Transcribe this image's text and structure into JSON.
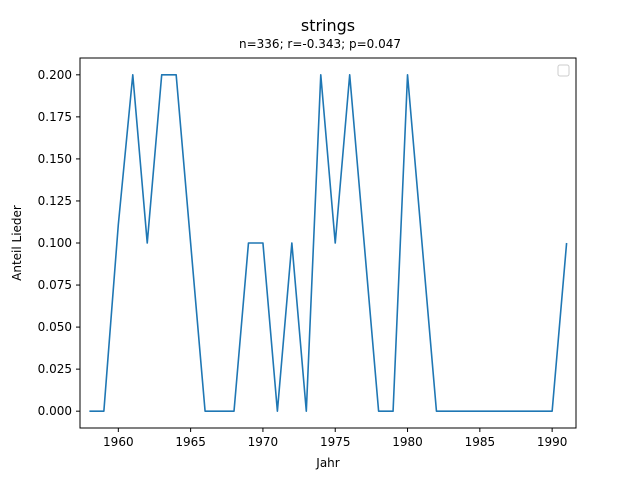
{
  "chart_data": {
    "type": "line",
    "title": "strings",
    "subtitle": "n=336; r=-0.343; p=0.047",
    "xlabel": "Jahr",
    "ylabel": "Anteil Lieder",
    "xlim": [
      1957.35,
      1991.65
    ],
    "ylim": [
      -0.01,
      0.21
    ],
    "xticks": [
      1960,
      1965,
      1970,
      1975,
      1980,
      1985,
      1990
    ],
    "yticks": [
      0.0,
      0.025,
      0.05,
      0.075,
      0.1,
      0.125,
      0.15,
      0.175,
      0.2
    ],
    "xtick_labels": [
      "1960",
      "1965",
      "1970",
      "1975",
      "1980",
      "1985",
      "1990"
    ],
    "ytick_labels": [
      "0.000",
      "0.025",
      "0.050",
      "0.075",
      "0.100",
      "0.125",
      "0.150",
      "0.175",
      "0.200"
    ],
    "legend": {
      "placement": "top-right",
      "entries": []
    },
    "grid": false,
    "series": [
      {
        "color": "#1f77b4",
        "x": [
          1958,
          1959,
          1960,
          1961,
          1962,
          1963,
          1964,
          1965,
          1966,
          1967,
          1968,
          1969,
          1970,
          1971,
          1972,
          1973,
          1974,
          1975,
          1976,
          1977,
          1978,
          1979,
          1980,
          1981,
          1982,
          1983,
          1984,
          1985,
          1986,
          1987,
          1988,
          1989,
          1990,
          1991
        ],
        "values": [
          0.0,
          0.0,
          0.111,
          0.2,
          0.1,
          0.2,
          0.2,
          0.1,
          0.0,
          0.0,
          0.0,
          0.1,
          0.1,
          0.0,
          0.1,
          0.0,
          0.2,
          0.1,
          0.2,
          0.1,
          0.0,
          0.0,
          0.2,
          0.1,
          0.0,
          0.0,
          0.0,
          0.0,
          0.0,
          0.0,
          0.0,
          0.0,
          0.0,
          0.1
        ]
      }
    ]
  }
}
